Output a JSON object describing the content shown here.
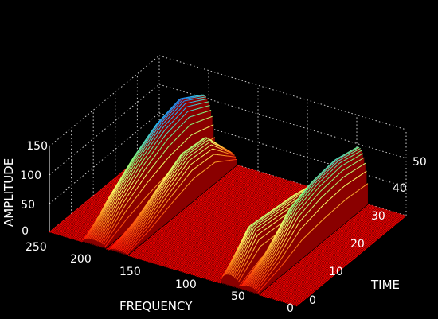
{
  "chart_data": {
    "type": "surface-3d",
    "xlabel": "FREQUENCY",
    "ylabel": "TIME",
    "zlabel": "AMPLITUDE",
    "xlim": [
      0,
      250
    ],
    "ylim": [
      0,
      50
    ],
    "zlim": [
      0,
      150
    ],
    "x_ticks": [
      "250",
      "200",
      "150",
      "100",
      "50",
      "0"
    ],
    "y_ticks": [
      "0",
      "10",
      "20",
      "30",
      "40",
      "50"
    ],
    "z_ticks": [
      "0",
      "50",
      "100",
      "150"
    ],
    "grid": true,
    "colormap": [
      "#ff0000",
      "#ff8c1a",
      "#ffff66",
      "#7fff7f",
      "#1ab0ff",
      "#3030d0"
    ],
    "background": "#000000",
    "ridges": [
      {
        "freq": 205,
        "width": 12,
        "amp_by_time": [
          [
            0,
            10
          ],
          [
            10,
            60
          ],
          [
            20,
            95
          ],
          [
            30,
            120
          ],
          [
            40,
            130
          ],
          [
            50,
            105
          ]
        ]
      },
      {
        "freq": 180,
        "width": 10,
        "amp_by_time": [
          [
            0,
            5
          ],
          [
            10,
            25
          ],
          [
            20,
            55
          ],
          [
            30,
            80
          ],
          [
            40,
            75
          ],
          [
            50,
            20
          ]
        ]
      },
      {
        "freq": 67,
        "width": 10,
        "amp_by_time": [
          [
            0,
            20
          ],
          [
            10,
            75
          ],
          [
            20,
            70
          ],
          [
            30,
            65
          ],
          [
            40,
            55
          ],
          [
            50,
            10
          ]
        ]
      },
      {
        "freq": 48,
        "width": 10,
        "amp_by_time": [
          [
            0,
            10
          ],
          [
            10,
            40
          ],
          [
            20,
            85
          ],
          [
            30,
            100
          ],
          [
            40,
            105
          ],
          [
            50,
            95
          ]
        ]
      }
    ]
  }
}
